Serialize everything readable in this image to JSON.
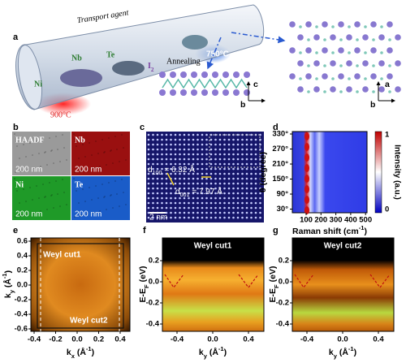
{
  "panel_a": {
    "label": "a",
    "transport_agent": "Transport agent",
    "nb": "Nb",
    "te": "Te",
    "ni": "Ni",
    "i2": {
      "t1": "I",
      "sub": "2"
    },
    "annealing": "Annealing",
    "t_low": "750°C",
    "t_high": "900°C",
    "axes_mid": {
      "up": "c",
      "side": "b"
    },
    "axes_right": {
      "up": "a",
      "side": "b"
    }
  },
  "panel_b": {
    "label": "b",
    "tiles": [
      {
        "name": "HAADF",
        "scale": "200 nm"
      },
      {
        "name": "Nb",
        "scale": "200 nm"
      },
      {
        "name": "Ni",
        "scale": "200 nm"
      },
      {
        "name": "Te",
        "scale": "200 nm"
      }
    ]
  },
  "panel_c": {
    "label": "c",
    "d100": {
      "t1": "d",
      "sub": "100",
      "t2": " = 6.32 Å"
    },
    "d001": {
      "t1": "d",
      "sub": "001",
      "t2": " = 7.97 Å"
    },
    "scale": "2 nm"
  },
  "panel_d": {
    "label": "d",
    "y_ticks": [
      "330°",
      "270°",
      "210°",
      "150°",
      "90°",
      "30°"
    ],
    "y_label": "θ (degree)",
    "x_ticks": [
      "100",
      "200",
      "300",
      "400",
      "500"
    ],
    "x_label": {
      "t1": "Raman shift (cm",
      "sup": "-1",
      "t2": ")"
    },
    "cbar_ticks": [
      "1",
      "0"
    ],
    "cbar_label": "Intensity (a.u.)"
  },
  "panel_e": {
    "label": "e",
    "y_ticks": [
      "0.6",
      "0.4",
      "0.2",
      "0.0",
      "-0.2",
      "-0.4",
      "-0.6"
    ],
    "x_ticks": [
      "-0.4",
      "-0.2",
      "0.0",
      "0.2",
      "0.4"
    ],
    "y_label": {
      "t1": "k",
      "sub": "y",
      "t2": " (Å",
      "sup": "-1",
      "t3": ")"
    },
    "x_label": {
      "t1": "k",
      "sub": "x",
      "t2": " (Å",
      "sup": "-1",
      "t3": ")"
    },
    "cut1": "Weyl cut1",
    "cut2": "Weyl cut2"
  },
  "panel_f": {
    "label": "f",
    "title": "Weyl cut1",
    "y_ticks": [
      "0.2",
      "0.0",
      "-0.2",
      "-0.4"
    ],
    "x_ticks": [
      "-0.4",
      "0.0",
      "0.4"
    ],
    "y_label": {
      "t1": "E-E",
      "sub": "F",
      "t2": " (eV)"
    },
    "x_label": {
      "t1": "k",
      "sub": "y",
      "t2": " (Å",
      "sup": "-1",
      "t3": ")"
    }
  },
  "panel_g": {
    "label": "g",
    "title": "Weyl cut2",
    "y_ticks": [
      "0.2",
      "0.0",
      "-0.2",
      "-0.4"
    ],
    "x_ticks": [
      "-0.4",
      "0.0",
      "0.4"
    ],
    "y_label": {
      "t1": "E-E",
      "sub": "F",
      "t2": " (eV)"
    },
    "x_label": {
      "t1": "k",
      "sub": "y",
      "t2": " (Å",
      "sup": "-1",
      "t3": ")"
    }
  }
}
